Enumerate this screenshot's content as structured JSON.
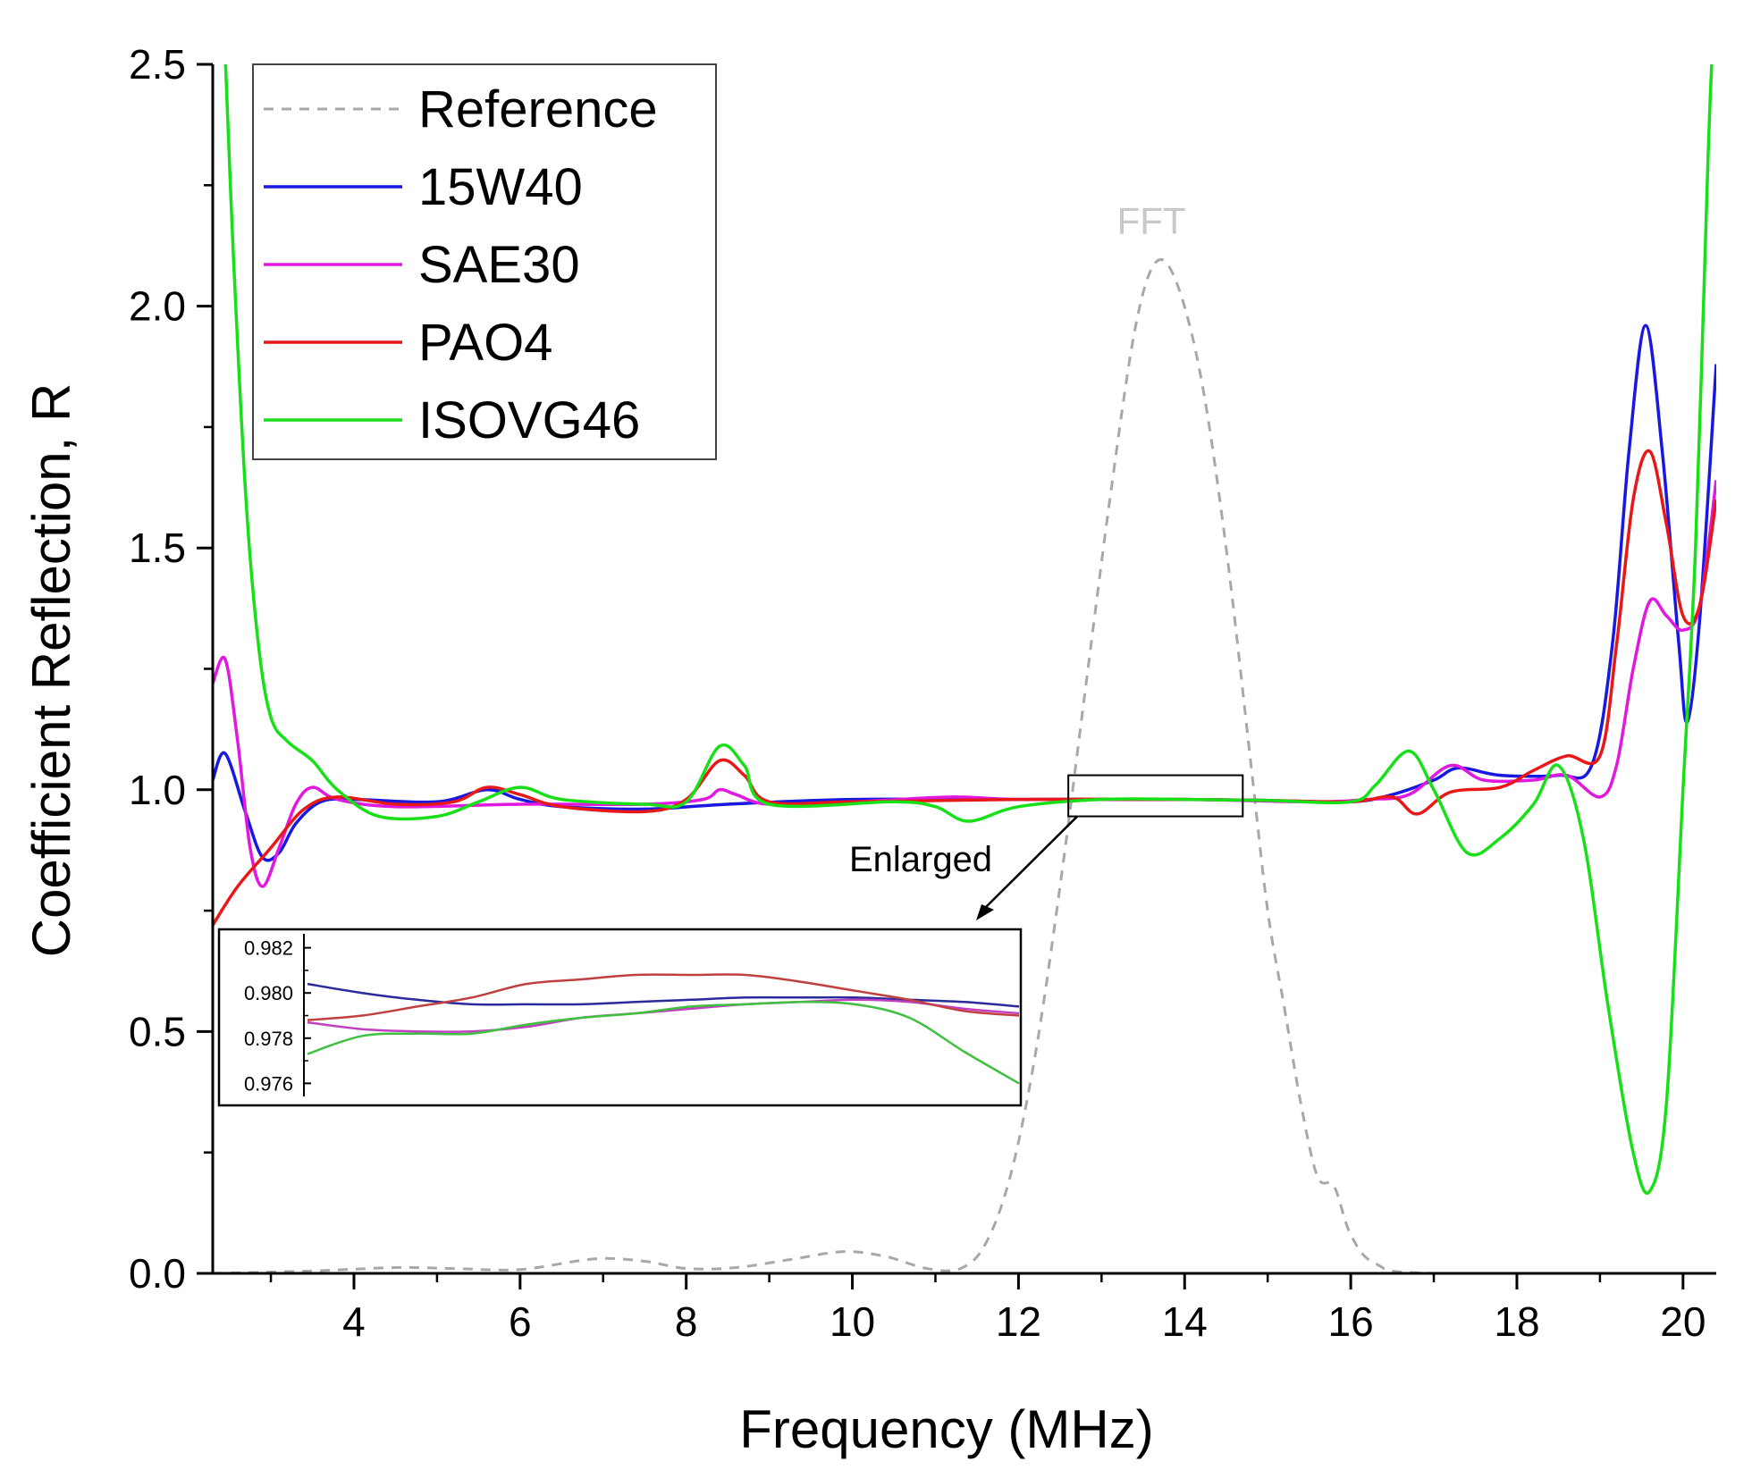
{
  "chart_data": {
    "type": "line",
    "title": "",
    "xlabel": "Frequency (MHz)",
    "ylabel": "Coefficient Reflection, R",
    "xlim": [
      2.3,
      20.4
    ],
    "ylim": [
      0,
      2.5
    ],
    "x_ticks": [
      4,
      6,
      8,
      10,
      12,
      14,
      16,
      18,
      20
    ],
    "y_ticks": [
      0.0,
      0.5,
      1.0,
      1.5,
      2.0,
      2.5
    ],
    "x_tick_labels": [
      "4",
      "6",
      "8",
      "10",
      "12",
      "14",
      "16",
      "18",
      "20"
    ],
    "y_tick_labels": [
      "0.0",
      "0.5",
      "1.0",
      "1.5",
      "2.0",
      "2.5"
    ],
    "grid": false,
    "legend_position": "top-left",
    "series": [
      {
        "name": "Reference",
        "color": "#a8a8a8",
        "dash": true,
        "points": [
          [
            2.3,
            0
          ],
          [
            3.5,
            0.005
          ],
          [
            4.5,
            0.012
          ],
          [
            5.2,
            0.01
          ],
          [
            6,
            0.008
          ],
          [
            6.9,
            0.03
          ],
          [
            7.5,
            0.025
          ],
          [
            8,
            0.01
          ],
          [
            8.6,
            0.012
          ],
          [
            9.3,
            0.03
          ],
          [
            9.9,
            0.045
          ],
          [
            10.4,
            0.035
          ],
          [
            10.9,
            0.01
          ],
          [
            11.3,
            0.01
          ],
          [
            11.6,
            0.06
          ],
          [
            11.9,
            0.2
          ],
          [
            12.2,
            0.45
          ],
          [
            12.5,
            0.8
          ],
          [
            12.8,
            1.2
          ],
          [
            13.1,
            1.6
          ],
          [
            13.4,
            1.95
          ],
          [
            13.65,
            2.09
          ],
          [
            13.9,
            2.05
          ],
          [
            14.2,
            1.85
          ],
          [
            14.5,
            1.5
          ],
          [
            14.8,
            1.05
          ],
          [
            15.0,
            0.75
          ],
          [
            15.2,
            0.55
          ],
          [
            15.4,
            0.35
          ],
          [
            15.6,
            0.2
          ],
          [
            15.8,
            0.18
          ],
          [
            16.0,
            0.08
          ],
          [
            16.3,
            0.02
          ],
          [
            17,
            0
          ],
          [
            20.4,
            0
          ]
        ]
      },
      {
        "name": "15W40",
        "color": "#1818e0",
        "points": [
          [
            2.3,
            1.02
          ],
          [
            2.45,
            1.075
          ],
          [
            2.7,
            0.95
          ],
          [
            2.9,
            0.86
          ],
          [
            3.1,
            0.87
          ],
          [
            3.3,
            0.93
          ],
          [
            3.6,
            0.975
          ],
          [
            4,
            0.98
          ],
          [
            5,
            0.975
          ],
          [
            5.6,
            1.0
          ],
          [
            6,
            0.98
          ],
          [
            6.5,
            0.965
          ],
          [
            7.5,
            0.96
          ],
          [
            8.5,
            0.97
          ],
          [
            10,
            0.98
          ],
          [
            12,
            0.98
          ],
          [
            14,
            0.98
          ],
          [
            15,
            0.978
          ],
          [
            16,
            0.975
          ],
          [
            16.5,
            0.99
          ],
          [
            17,
            1.02
          ],
          [
            17.3,
            1.045
          ],
          [
            17.8,
            1.03
          ],
          [
            18.5,
            1.03
          ],
          [
            18.9,
            1.05
          ],
          [
            19.15,
            1.3
          ],
          [
            19.35,
            1.7
          ],
          [
            19.55,
            1.96
          ],
          [
            19.75,
            1.7
          ],
          [
            19.95,
            1.3
          ],
          [
            20.05,
            1.14
          ],
          [
            20.2,
            1.35
          ],
          [
            20.4,
            1.88
          ]
        ]
      },
      {
        "name": "SAE30",
        "color": "#e018e0",
        "points": [
          [
            2.3,
            1.22
          ],
          [
            2.45,
            1.27
          ],
          [
            2.6,
            1.1
          ],
          [
            2.75,
            0.88
          ],
          [
            2.9,
            0.8
          ],
          [
            3.1,
            0.88
          ],
          [
            3.3,
            0.97
          ],
          [
            3.5,
            1.005
          ],
          [
            3.8,
            0.98
          ],
          [
            4.5,
            0.965
          ],
          [
            6,
            0.97
          ],
          [
            7.5,
            0.97
          ],
          [
            8.2,
            0.98
          ],
          [
            8.4,
            1.0
          ],
          [
            8.6,
            0.99
          ],
          [
            9,
            0.97
          ],
          [
            10,
            0.975
          ],
          [
            11.2,
            0.985
          ],
          [
            12,
            0.98
          ],
          [
            14,
            0.98
          ],
          [
            15.5,
            0.975
          ],
          [
            16.2,
            0.98
          ],
          [
            16.7,
            0.99
          ],
          [
            17.2,
            1.05
          ],
          [
            17.6,
            1.02
          ],
          [
            18.2,
            1.02
          ],
          [
            18.6,
            1.03
          ],
          [
            19,
            0.985
          ],
          [
            19.2,
            1.05
          ],
          [
            19.4,
            1.25
          ],
          [
            19.6,
            1.39
          ],
          [
            19.8,
            1.36
          ],
          [
            20.0,
            1.33
          ],
          [
            20.2,
            1.38
          ],
          [
            20.4,
            1.64
          ]
        ]
      },
      {
        "name": "PAO4",
        "color": "#e81818",
        "points": [
          [
            2.3,
            0.72
          ],
          [
            2.6,
            0.8
          ],
          [
            3,
            0.88
          ],
          [
            3.4,
            0.96
          ],
          [
            3.8,
            0.985
          ],
          [
            4.5,
            0.97
          ],
          [
            5.2,
            0.975
          ],
          [
            5.6,
            1.005
          ],
          [
            6,
            0.99
          ],
          [
            6.5,
            0.965
          ],
          [
            7.5,
            0.955
          ],
          [
            8,
            0.98
          ],
          [
            8.4,
            1.06
          ],
          [
            8.7,
            1.03
          ],
          [
            9,
            0.975
          ],
          [
            10,
            0.975
          ],
          [
            12,
            0.98
          ],
          [
            14,
            0.98
          ],
          [
            15,
            0.978
          ],
          [
            16,
            0.975
          ],
          [
            16.5,
            0.985
          ],
          [
            16.8,
            0.95
          ],
          [
            17.2,
            0.995
          ],
          [
            17.8,
            1.005
          ],
          [
            18.2,
            1.04
          ],
          [
            18.6,
            1.07
          ],
          [
            19,
            1.07
          ],
          [
            19.2,
            1.3
          ],
          [
            19.4,
            1.6
          ],
          [
            19.6,
            1.7
          ],
          [
            19.8,
            1.55
          ],
          [
            20.0,
            1.36
          ],
          [
            20.2,
            1.38
          ],
          [
            20.4,
            1.6
          ]
        ]
      },
      {
        "name": "ISOVG46",
        "color": "#18e018",
        "points": [
          [
            2.45,
            2.52
          ],
          [
            2.55,
            2.1
          ],
          [
            2.7,
            1.6
          ],
          [
            2.85,
            1.3
          ],
          [
            3,
            1.15
          ],
          [
            3.2,
            1.1
          ],
          [
            3.5,
            1.06
          ],
          [
            3.8,
            1.0
          ],
          [
            4.3,
            0.945
          ],
          [
            5,
            0.945
          ],
          [
            5.5,
            0.975
          ],
          [
            6,
            1.005
          ],
          [
            6.5,
            0.98
          ],
          [
            7.5,
            0.97
          ],
          [
            8,
            0.975
          ],
          [
            8.4,
            1.09
          ],
          [
            8.7,
            1.05
          ],
          [
            9,
            0.97
          ],
          [
            10.5,
            0.975
          ],
          [
            11.0,
            0.965
          ],
          [
            11.4,
            0.935
          ],
          [
            12,
            0.965
          ],
          [
            13,
            0.98
          ],
          [
            14,
            0.98
          ],
          [
            15,
            0.978
          ],
          [
            16,
            0.975
          ],
          [
            16.3,
            1.01
          ],
          [
            16.7,
            1.08
          ],
          [
            17.0,
            1.0
          ],
          [
            17.4,
            0.87
          ],
          [
            17.8,
            0.9
          ],
          [
            18.2,
            0.97
          ],
          [
            18.5,
            1.05
          ],
          [
            18.8,
            0.9
          ],
          [
            19.1,
            0.55
          ],
          [
            19.4,
            0.25
          ],
          [
            19.6,
            0.17
          ],
          [
            19.8,
            0.35
          ],
          [
            20.0,
            1.0
          ],
          [
            20.15,
            1.5
          ],
          [
            20.3,
            2.3
          ],
          [
            20.35,
            2.52
          ]
        ]
      }
    ],
    "annotations": {
      "fft_label": "FFT",
      "enlarged_label": "Enlarged",
      "zoom_box_x": [
        12.6,
        14.7
      ],
      "zoom_box_y": [
        0.945,
        1.03
      ]
    },
    "inset": {
      "x_range": [
        12.6,
        14.7
      ],
      "ylim": [
        0.9755,
        0.9825
      ],
      "y_ticks": [
        0.976,
        0.978,
        0.98,
        0.982
      ],
      "y_tick_labels": [
        "0.976",
        "0.978",
        "0.980",
        "0.982"
      ],
      "series": [
        {
          "name": "15W40",
          "color": "#2a2a9a",
          "values": [
            0.9804,
            0.98,
            0.9797,
            0.9795,
            0.9795,
            0.9795,
            0.9796,
            0.9797,
            0.9798,
            0.9798,
            0.9798,
            0.9797,
            0.9796,
            0.9794
          ]
        },
        {
          "name": "SAE30",
          "color": "#c040c0",
          "values": [
            0.9787,
            0.9784,
            0.9783,
            0.9783,
            0.9785,
            0.9789,
            0.9791,
            0.9793,
            0.9795,
            0.9796,
            0.9797,
            0.9796,
            0.9793,
            0.9791
          ]
        },
        {
          "name": "PAO4",
          "color": "#c04040",
          "values": [
            0.9788,
            0.979,
            0.9794,
            0.9798,
            0.9804,
            0.9806,
            0.9808,
            0.9808,
            0.9808,
            0.9805,
            0.9801,
            0.9797,
            0.9792,
            0.979
          ]
        },
        {
          "name": "ISOVG46",
          "color": "#40c040",
          "values": [
            0.9773,
            0.9781,
            0.9782,
            0.9782,
            0.9786,
            0.9789,
            0.9791,
            0.9794,
            0.9795,
            0.9796,
            0.9795,
            0.9789,
            0.9774,
            0.976
          ]
        }
      ]
    }
  }
}
